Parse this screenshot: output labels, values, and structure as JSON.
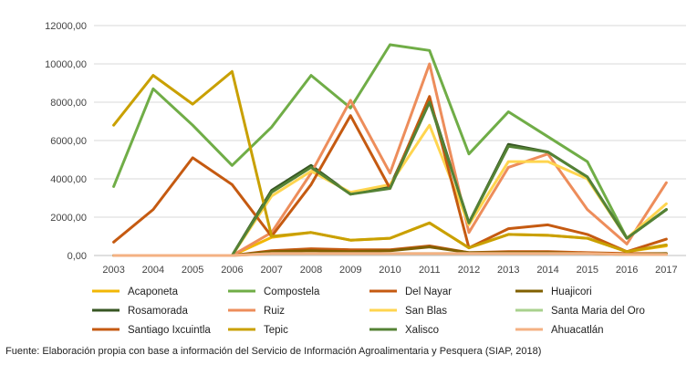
{
  "chart_data": {
    "type": "line",
    "title": "",
    "xlabel": "",
    "ylabel": "",
    "ylim": [
      0,
      12000
    ],
    "yticks": [
      "0,00",
      "2000,00",
      "4000,00",
      "6000,00",
      "8000,00",
      "10000,00",
      "12000,00"
    ],
    "x": [
      "2003",
      "2004",
      "2005",
      "2006",
      "2007",
      "2008",
      "2009",
      "2010",
      "2011",
      "2012",
      "2013",
      "2014",
      "2015",
      "2016",
      "2017"
    ],
    "grid": "horizontal",
    "legend_placement": "bottom",
    "series": [
      {
        "name": "Acaponeta",
        "color": "#F2B705",
        "values": [
          0,
          0,
          0,
          0,
          950,
          1200,
          800,
          900,
          1700,
          400,
          1100,
          1050,
          900,
          200,
          500
        ]
      },
      {
        "name": "Compostela",
        "color": "#70AD47",
        "values": [
          3600,
          8700,
          6800,
          4700,
          6700,
          9400,
          7700,
          11000,
          10700,
          5300,
          7500,
          6200,
          4900,
          900,
          2400
        ]
      },
      {
        "name": "Del Nayar",
        "color": "#C55A11",
        "values": [
          0,
          0,
          0,
          0,
          250,
          350,
          300,
          300,
          500,
          150,
          200,
          200,
          150,
          100,
          100
        ]
      },
      {
        "name": "Huajicori",
        "color": "#806000",
        "values": [
          0,
          0,
          0,
          0,
          200,
          250,
          200,
          250,
          450,
          150,
          150,
          150,
          100,
          50,
          100
        ]
      },
      {
        "name": "Rosamorada",
        "color": "#375623",
        "values": [
          0,
          0,
          0,
          0,
          3400,
          4700,
          3200,
          3600,
          8100,
          1700,
          5800,
          5400,
          4100,
          900,
          2400
        ]
      },
      {
        "name": "Ruiz",
        "color": "#ED8D5B",
        "values": [
          0,
          0,
          0,
          0,
          1200,
          4300,
          8100,
          4300,
          10000,
          1200,
          4600,
          5300,
          2400,
          600,
          3800
        ]
      },
      {
        "name": "San Blas",
        "color": "#FFD54F",
        "values": [
          0,
          0,
          0,
          0,
          3100,
          4400,
          3300,
          3700,
          6800,
          1600,
          4900,
          4900,
          4000,
          900,
          2700
        ]
      },
      {
        "name": "Santa María del Oro",
        "color": "#A9D18E",
        "values": [
          0,
          0,
          0,
          0,
          100,
          100,
          100,
          100,
          100,
          100,
          100,
          100,
          100,
          50,
          50
        ]
      },
      {
        "name": "Santiago Ixcuintla",
        "color": "#C55A11",
        "values": [
          700,
          2400,
          5100,
          3700,
          1000,
          3700,
          7300,
          3500,
          8300,
          400,
          1400,
          1600,
          1100,
          200,
          850
        ]
      },
      {
        "name": "Tepic",
        "color": "#C9A000",
        "values": [
          6800,
          9400,
          7900,
          9600,
          1000,
          1200,
          800,
          900,
          1700,
          400,
          1100,
          1050,
          900,
          200,
          550
        ]
      },
      {
        "name": "Xalisco",
        "color": "#548235",
        "values": [
          0,
          0,
          0,
          0,
          3300,
          4600,
          3200,
          3500,
          8000,
          1700,
          5700,
          5400,
          4100,
          900,
          2400
        ]
      },
      {
        "name": "Ahuacatlán",
        "color": "#F4B183",
        "values": [
          0,
          0,
          0,
          0,
          100,
          100,
          100,
          100,
          100,
          100,
          100,
          100,
          100,
          50,
          50
        ]
      }
    ],
    "source": "Fuente: Elaboración propia con base a información del Servicio de Información Agroalimentaria y Pesquera (SIAP, 2018)"
  },
  "legend_labels": [
    "Acaponeta",
    "Compostela",
    "Del Nayar",
    "Huajicori",
    "Rosamorada",
    "Ruiz",
    "San Blas",
    "Santa Maria del Oro",
    "Santiago Ixcuintla",
    "Tepic",
    "Xalisco",
    "Ahuacatlán"
  ]
}
